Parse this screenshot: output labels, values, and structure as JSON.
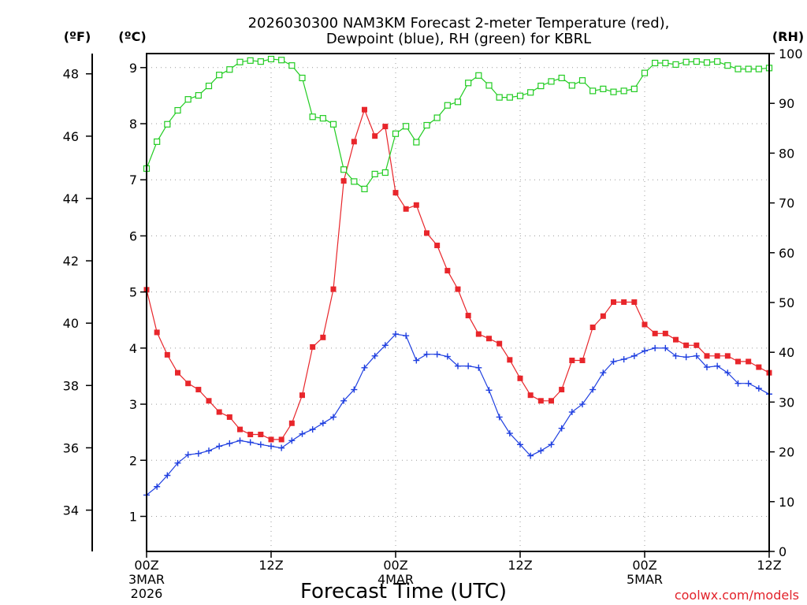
{
  "chart_data": {
    "type": "line",
    "title_line1": "2026030300 NAM3KM Forecast 2-meter Temperature (red),",
    "title_line2": "Dewpoint (blue), RH (green) for KBRL",
    "xlabel": "Forecast Time (UTC)",
    "units_f": "(ºF)",
    "units_c": "(ºC)",
    "units_rh": "(RH)",
    "credit": "coolwx.com/models",
    "x_unit": "forecast hour",
    "xlim": [
      0,
      60
    ],
    "ylim_c": [
      0.375,
      9.25
    ],
    "ylim_rh": [
      0,
      100
    ],
    "x_ticks": [
      {
        "x": 0,
        "label": "00Z",
        "sub1": "3MAR",
        "sub2": "2026"
      },
      {
        "x": 12,
        "label": "12Z",
        "sub1": "",
        "sub2": ""
      },
      {
        "x": 24,
        "label": "00Z",
        "sub1": "4MAR",
        "sub2": ""
      },
      {
        "x": 36,
        "label": "12Z",
        "sub1": "",
        "sub2": ""
      },
      {
        "x": 48,
        "label": "00Z",
        "sub1": "5MAR",
        "sub2": ""
      },
      {
        "x": 60,
        "label": "12Z",
        "sub1": "",
        "sub2": ""
      }
    ],
    "y_ticks_c": [
      "1",
      "2",
      "3",
      "4",
      "5",
      "6",
      "7",
      "8",
      "9"
    ],
    "y_ticks_f": [
      "34",
      "36",
      "38",
      "40",
      "42",
      "44",
      "46",
      "48"
    ],
    "y_ticks_rh": [
      "0",
      "10",
      "20",
      "30",
      "40",
      "50",
      "60",
      "70",
      "80",
      "90",
      "100"
    ],
    "series": [
      {
        "name": "2-meter Temperature",
        "unit": "C",
        "color": "#e8262b",
        "marker": "filled-square",
        "values": [
          5.04,
          4.28,
          3.88,
          3.56,
          3.37,
          3.26,
          3.06,
          2.86,
          2.77,
          2.55,
          2.46,
          2.46,
          2.37,
          2.37,
          2.66,
          3.16,
          4.02,
          4.19,
          5.05,
          6.98,
          7.68,
          8.25,
          7.78,
          7.95,
          6.77,
          6.48,
          6.55,
          6.05,
          5.83,
          5.38,
          5.05,
          4.58,
          4.25,
          4.17,
          4.08,
          3.79,
          3.46,
          3.16,
          3.06,
          3.06,
          3.26,
          3.78,
          3.78,
          4.37,
          4.57,
          4.82,
          4.82,
          4.82,
          4.42,
          4.26,
          4.26,
          4.15,
          4.05,
          4.05,
          3.86,
          3.86,
          3.86,
          3.76,
          3.76,
          3.66,
          3.56
        ]
      },
      {
        "name": "Dewpoint",
        "unit": "C",
        "color": "#1f3fe0",
        "marker": "plus",
        "values": [
          1.38,
          1.53,
          1.73,
          1.95,
          2.1,
          2.12,
          2.17,
          2.25,
          2.3,
          2.35,
          2.32,
          2.28,
          2.25,
          2.22,
          2.35,
          2.47,
          2.55,
          2.66,
          2.77,
          3.06,
          3.26,
          3.65,
          3.86,
          4.05,
          4.25,
          4.22,
          3.78,
          3.89,
          3.89,
          3.85,
          3.68,
          3.68,
          3.65,
          3.25,
          2.77,
          2.48,
          2.28,
          2.08,
          2.17,
          2.28,
          2.57,
          2.86,
          3.0,
          3.26,
          3.56,
          3.76,
          3.8,
          3.86,
          3.95,
          4.0,
          4.0,
          3.86,
          3.84,
          3.86,
          3.66,
          3.68,
          3.56,
          3.37,
          3.37,
          3.28,
          3.18
        ]
      },
      {
        "name": "RH",
        "unit": "%",
        "color": "#22cc22",
        "marker": "open-square",
        "values": [
          76.9,
          82.3,
          85.8,
          88.6,
          90.8,
          91.6,
          93.5,
          95.7,
          96.8,
          98.3,
          98.6,
          98.4,
          98.9,
          98.7,
          97.6,
          95.1,
          87.3,
          87.0,
          85.8,
          76.7,
          74.3,
          72.8,
          75.8,
          76.1,
          83.9,
          85.4,
          82.2,
          85.6,
          87.1,
          89.6,
          90.3,
          94.1,
          95.6,
          93.6,
          91.2,
          91.2,
          91.5,
          92.2,
          93.5,
          94.4,
          95.1,
          93.6,
          94.6,
          92.5,
          92.9,
          92.3,
          92.5,
          92.9,
          96.1,
          98.1,
          98.1,
          97.8,
          98.3,
          98.4,
          98.2,
          98.4,
          97.6,
          96.9,
          96.9,
          96.9,
          97.1
        ]
      }
    ]
  }
}
